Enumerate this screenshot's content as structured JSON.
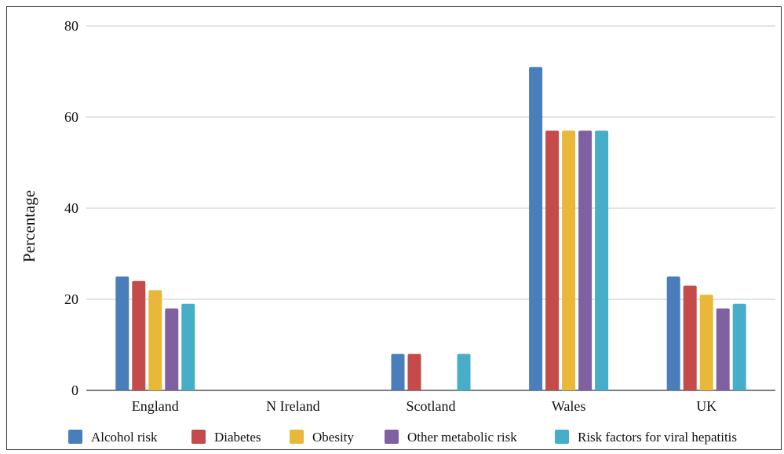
{
  "chart_data": {
    "type": "bar",
    "title": "",
    "xlabel": "",
    "ylabel": "Percentage",
    "categories": [
      "England",
      "N Ireland",
      "Scotland",
      "Wales",
      "UK"
    ],
    "ylim": [
      0,
      80
    ],
    "yticks": [
      "0",
      "20",
      "40",
      "60",
      "80"
    ],
    "grid": true,
    "legend_position": "bottom",
    "series": [
      {
        "name": "Alcohol risk",
        "color": "#4a7ebb",
        "values": [
          25,
          null,
          8,
          71,
          25
        ]
      },
      {
        "name": "Diabetes",
        "color": "#c44b49",
        "values": [
          24,
          null,
          8,
          57,
          23
        ]
      },
      {
        "name": "Obesity",
        "color": "#eab839",
        "values": [
          22,
          null,
          null,
          57,
          21
        ]
      },
      {
        "name": "Other metabolic risk",
        "color": "#7f61a2",
        "values": [
          18,
          null,
          null,
          57,
          18
        ]
      },
      {
        "name": "Risk factors for viral hepatitis",
        "color": "#47aec9",
        "values": [
          19,
          null,
          8,
          57,
          19
        ]
      }
    ]
  }
}
